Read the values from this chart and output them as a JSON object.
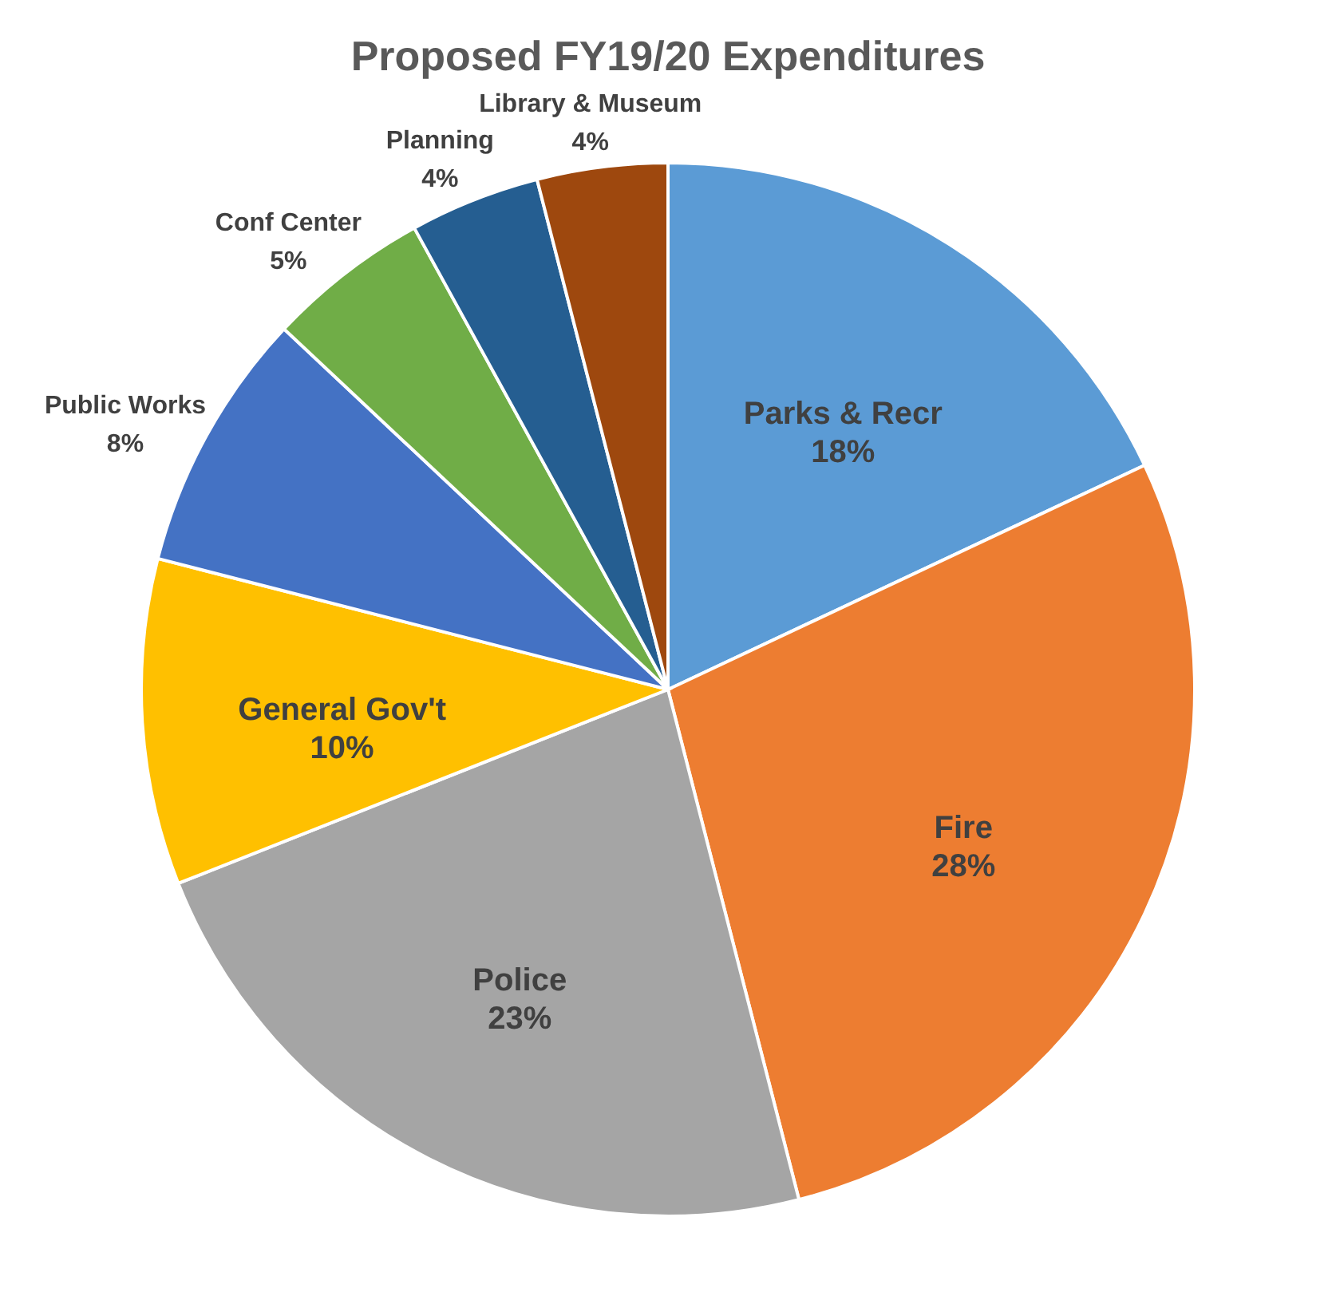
{
  "chart_data": {
    "type": "pie",
    "title": "Proposed FY19/20 Expenditures",
    "categories": [
      "Parks & Recr",
      "Fire",
      "Police",
      "General Gov't",
      "Public Works",
      "Conf Center",
      "Planning",
      "Library & Museum"
    ],
    "values": [
      18,
      28,
      23,
      10,
      8,
      5,
      4,
      4
    ],
    "value_labels": [
      "18%",
      "28%",
      "23%",
      "10%",
      "8%",
      "5%",
      "4%",
      "4%"
    ],
    "colors": [
      "#5b9bd5",
      "#ed7d31",
      "#a5a5a5",
      "#ffc000",
      "#4472c4",
      "#70ad47",
      "#255e91",
      "#9e480e"
    ],
    "legend": false
  }
}
